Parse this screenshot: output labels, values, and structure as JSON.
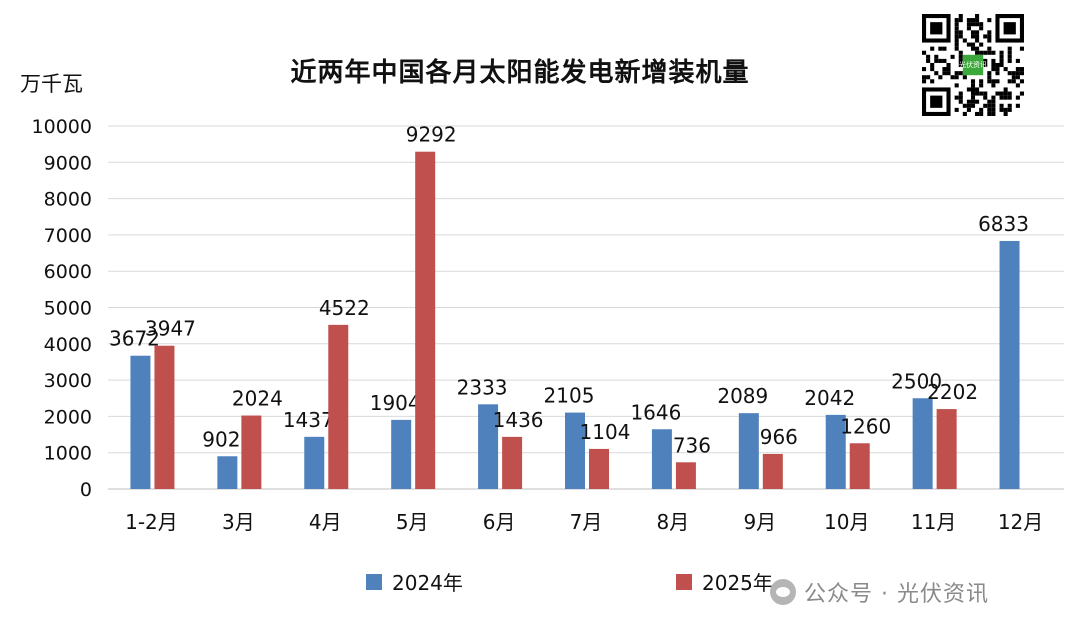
{
  "chart_data": {
    "type": "bar",
    "title": "近两年中国各月太阳能发电新增装机量",
    "ylabel": "万千瓦",
    "ylim": [
      0,
      10000
    ],
    "yticks": [
      0,
      1000,
      2000,
      3000,
      4000,
      5000,
      6000,
      7000,
      8000,
      9000,
      10000
    ],
    "grid": true,
    "legend_position": "bottom",
    "categories": [
      "1-2月",
      "3月",
      "4月",
      "5月",
      "6月",
      "7月",
      "8月",
      "9月",
      "10月",
      "11月",
      "12月"
    ],
    "series": [
      {
        "name": "2024年",
        "color": "#4f81bd",
        "values": [
          3672,
          902,
          1437,
          1904,
          2333,
          2105,
          1646,
          2089,
          2042,
          2500,
          6833
        ]
      },
      {
        "name": "2025年",
        "color": "#c0504d",
        "values": [
          3947,
          2024,
          4522,
          9292,
          1436,
          1104,
          736,
          966,
          1260,
          2202,
          null
        ]
      }
    ]
  },
  "watermark": {
    "text": "公众号 · 光伏资讯",
    "icon": "wechat-icon"
  },
  "qr_code": {
    "center_text": "光伏资讯",
    "icon": "qr-code-icon"
  }
}
